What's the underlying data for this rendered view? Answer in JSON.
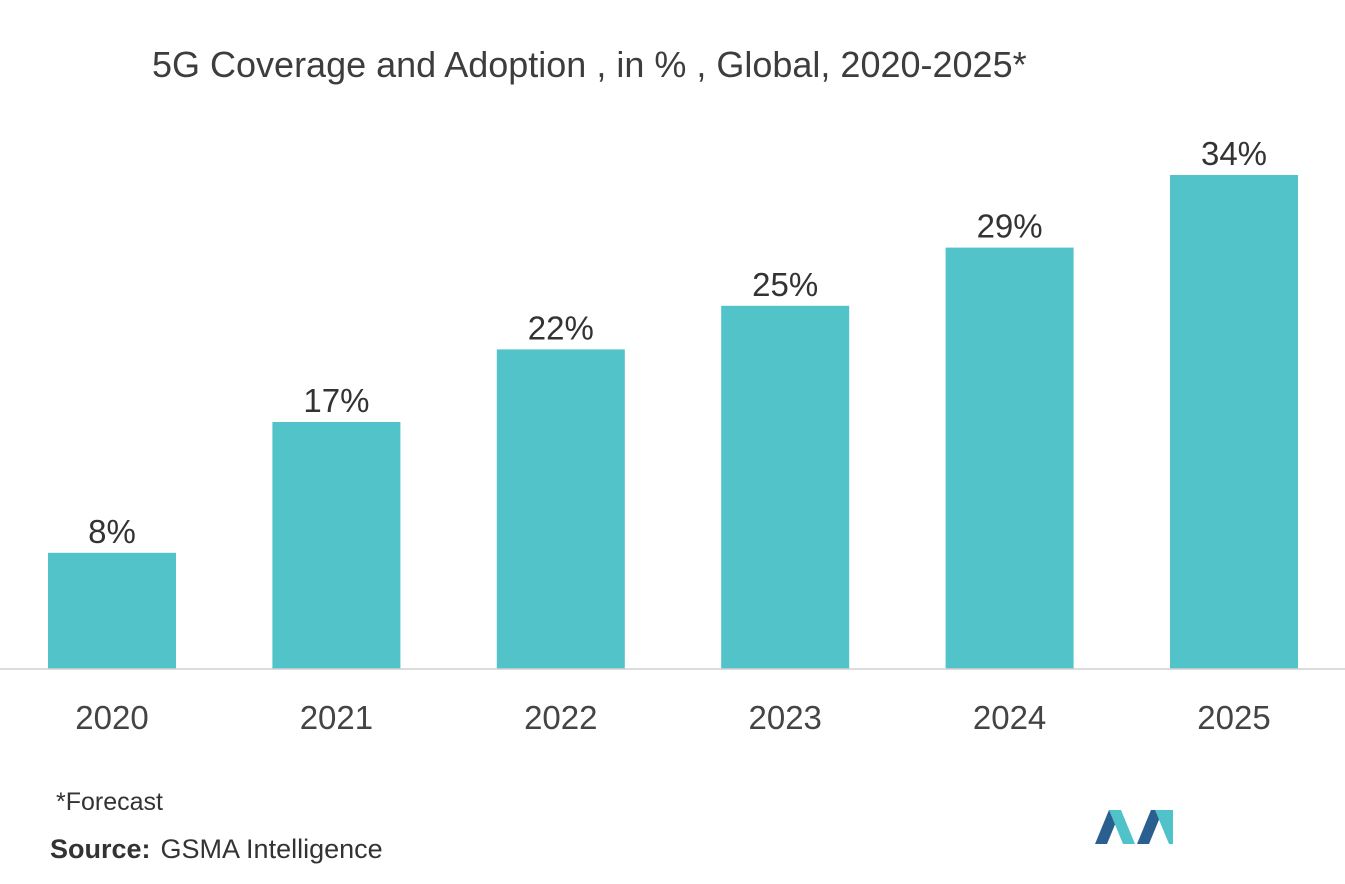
{
  "title": "5G Coverage and Adoption , in % , Global, 2020-2025*",
  "footnote": "*Forecast",
  "source": {
    "label": "Source:",
    "text": "GSMA Intelligence"
  },
  "colors": {
    "bar": "#51c3c9",
    "axis": "#d0d0d0",
    "logo_dark": "#2a5f8f",
    "logo_light": "#4fc3c9"
  },
  "logo": {
    "icon": "mordor-intelligence-logo"
  },
  "chart_data": {
    "type": "bar",
    "categories": [
      "2020",
      "2021",
      "2022",
      "2023",
      "2024",
      "2025"
    ],
    "values": [
      8,
      17,
      22,
      25,
      29,
      34
    ],
    "data_labels": [
      "8%",
      "17%",
      "22%",
      "25%",
      "29%",
      "34%"
    ],
    "title": "5G Coverage and Adoption , in % , Global, 2020-2025*",
    "xlabel": "",
    "ylabel": "",
    "ylim": [
      0,
      34
    ],
    "grid": false,
    "legend": "none"
  }
}
